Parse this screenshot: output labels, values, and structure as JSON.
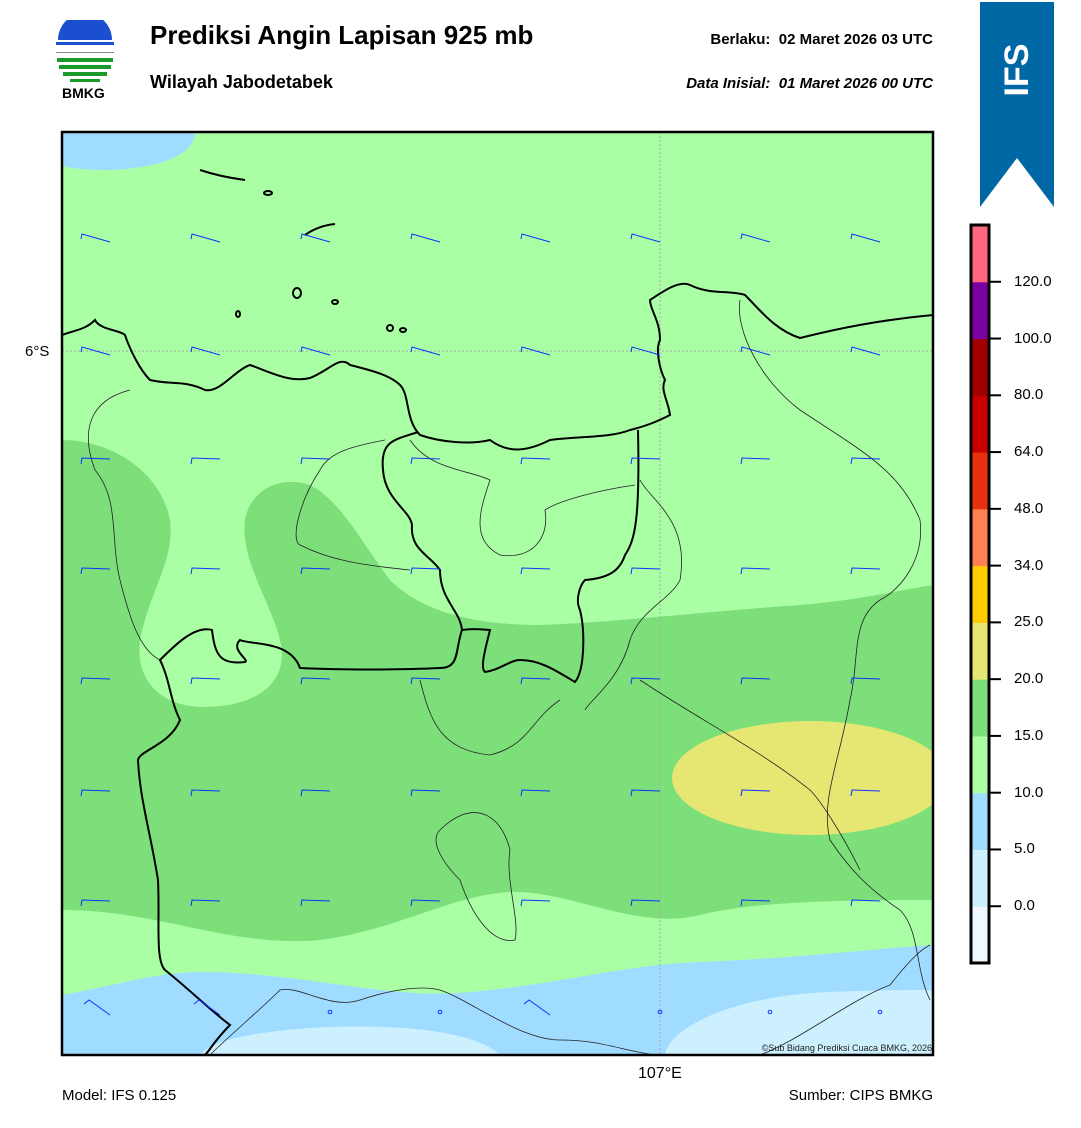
{
  "header": {
    "title": "Prediksi Angin Lapisan 925 mb",
    "subtitle": "Wilayah Jabodetabek",
    "valid_label": "Berlaku:",
    "valid_time": "02 Maret 2026 03 UTC",
    "init_label": "Data Inisial:",
    "init_time": "01 Maret 2026 00 UTC"
  },
  "logo": {
    "text": "BMKG"
  },
  "model_banner": {
    "text": "IFS",
    "color": "#0067a5"
  },
  "map": {
    "lat_label": "6°S",
    "lon_label": "107°E",
    "copyright": "©Sub Bidang Prediksi Cuaca BMKG, 2026",
    "fill_colors": {
      "base": "#aaffa5",
      "green": "#7ddf7a",
      "yellow": "#e6e673",
      "blue": "#a0dcff",
      "lightblue": "#cdf0ff"
    },
    "barb_color": "#1030ff",
    "barb_rows": [
      [
        "b",
        "b",
        "b",
        "b",
        "b",
        "b",
        "b",
        "b"
      ],
      [
        "b",
        "b",
        "b",
        "b",
        "b",
        "b",
        "b",
        "b"
      ],
      [
        "b",
        "b",
        "b",
        "b",
        "b",
        "b",
        "b",
        "b"
      ],
      [
        "b",
        "b",
        "b",
        "b",
        "b",
        "b",
        "b",
        "b"
      ],
      [
        "b",
        "b",
        "b",
        "b",
        "b",
        "b",
        "b",
        "b"
      ],
      [
        "b",
        "b",
        "b",
        "b",
        "b",
        "b",
        "b",
        "b"
      ],
      [
        "b",
        "b",
        "b",
        "b",
        "b",
        "b",
        "b",
        "b"
      ],
      [
        "s",
        "s",
        "c",
        "c",
        "s",
        "c",
        "c",
        "c"
      ]
    ]
  },
  "colorbar": {
    "ticks": [
      "0.0",
      "5.0",
      "10.0",
      "15.0",
      "20.0",
      "25.0",
      "34.0",
      "48.0",
      "64.0",
      "80.0",
      "100.0",
      "120.0"
    ],
    "colors": [
      "#f0f8ff",
      "#cdf0ff",
      "#a0dcff",
      "#aaffa5",
      "#7ddf7a",
      "#e6e673",
      "#ffcc00",
      "#ff8050",
      "#e83010",
      "#c80000",
      "#a00000",
      "#7a00a0",
      "#ff6680"
    ]
  },
  "footer": {
    "model": "Model: IFS 0.125",
    "source": "Sumber: CIPS BMKG"
  }
}
